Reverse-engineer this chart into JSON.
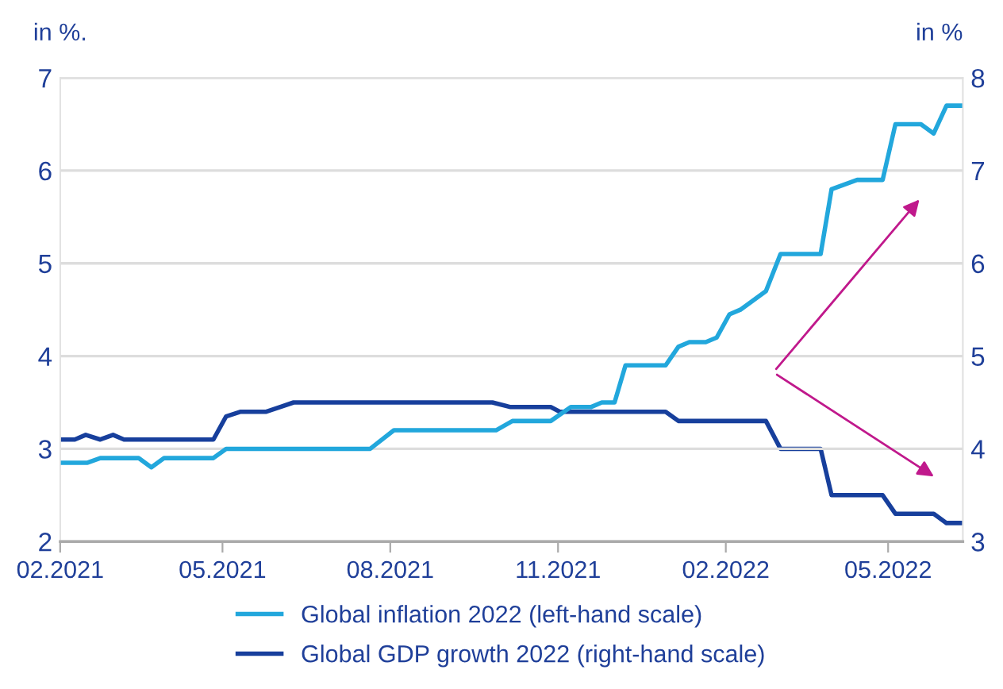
{
  "chart_data": {
    "type": "line",
    "ylabel": "in %.",
    "y2label": "in %",
    "xlim": [
      "2021-02-01",
      "2022-06-11"
    ],
    "xticks": [
      {
        "value": "2021-02-01",
        "label": "02.2021"
      },
      {
        "value": "2021-05-01",
        "label": "05.2021"
      },
      {
        "value": "2021-08-01",
        "label": "08.2021"
      },
      {
        "value": "2021-11-01",
        "label": "11.2021"
      },
      {
        "value": "2022-02-01",
        "label": "02.2022"
      },
      {
        "value": "2022-05-01",
        "label": "05.2022"
      }
    ],
    "ylim": [
      2,
      7
    ],
    "yticks": [
      2,
      3,
      4,
      5,
      6,
      7
    ],
    "y2lim": [
      3,
      8
    ],
    "y2ticks": [
      3,
      4,
      5,
      6,
      7,
      8
    ],
    "grid": "y",
    "legend": "bottom",
    "marker": "none",
    "line_style": "solid",
    "series": [
      {
        "name": "Global inflation 2022 (left-hand scale)",
        "color": "#22a7dc",
        "axis": "y",
        "x": [
          "2021-02-01",
          "2021-02-16",
          "2021-02-23",
          "2021-03-16",
          "2021-03-23",
          "2021-03-30",
          "2021-04-26",
          "2021-05-03",
          "2021-07-21",
          "2021-08-03",
          "2021-09-28",
          "2021-10-07",
          "2021-10-28",
          "2021-11-08",
          "2021-11-19",
          "2021-11-25",
          "2021-12-02",
          "2021-12-08",
          "2021-12-30",
          "2022-01-06",
          "2022-01-12",
          "2022-01-21",
          "2022-01-27",
          "2022-02-03",
          "2022-02-09",
          "2022-02-23",
          "2022-03-03",
          "2022-03-25",
          "2022-03-31",
          "2022-04-14",
          "2022-04-28",
          "2022-05-05",
          "2022-05-19",
          "2022-05-26",
          "2022-06-02",
          "2022-06-10"
        ],
        "values": [
          2.85,
          2.85,
          2.9,
          2.9,
          2.8,
          2.9,
          2.9,
          3.0,
          3.0,
          3.2,
          3.2,
          3.3,
          3.3,
          3.45,
          3.45,
          3.5,
          3.5,
          3.9,
          3.9,
          4.1,
          4.15,
          4.15,
          4.2,
          4.45,
          4.5,
          4.7,
          5.1,
          5.1,
          5.8,
          5.9,
          5.9,
          6.5,
          6.5,
          6.4,
          6.7,
          6.7
        ]
      },
      {
        "name": "Global GDP growth 2022 (right-hand scale)",
        "color": "#173f9c",
        "axis": "y2",
        "x": [
          "2021-02-01",
          "2021-02-09",
          "2021-02-15",
          "2021-02-23",
          "2021-03-02",
          "2021-03-08",
          "2021-04-26",
          "2021-05-03",
          "2021-05-11",
          "2021-05-25",
          "2021-06-09",
          "2021-09-26",
          "2021-10-06",
          "2021-10-28",
          "2021-11-02",
          "2021-12-30",
          "2022-01-06",
          "2022-02-23",
          "2022-03-03",
          "2022-03-25",
          "2022-03-31",
          "2022-04-28",
          "2022-05-05",
          "2022-05-26",
          "2022-06-02",
          "2022-06-10"
        ],
        "values": [
          4.1,
          4.1,
          4.15,
          4.1,
          4.15,
          4.1,
          4.1,
          4.35,
          4.4,
          4.4,
          4.5,
          4.5,
          4.45,
          4.45,
          4.4,
          4.4,
          4.3,
          4.3,
          4.0,
          4.0,
          3.5,
          3.5,
          3.3,
          3.3,
          3.2,
          3.2
        ]
      }
    ]
  }
}
